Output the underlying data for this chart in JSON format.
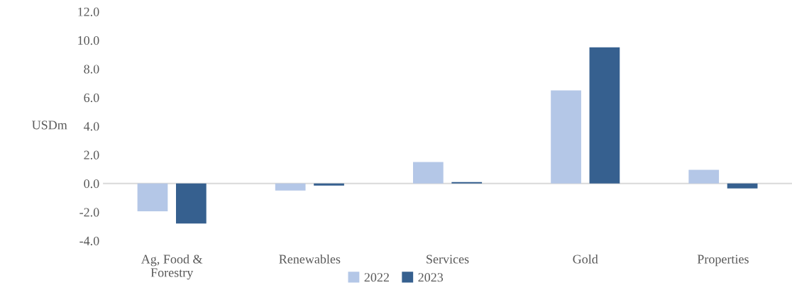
{
  "chart_data": {
    "type": "bar",
    "ylabel": "USDm",
    "categories": [
      "Ag, Food &\nForestry",
      "Renewables",
      "Services",
      "Gold",
      "Properties"
    ],
    "series": [
      {
        "name": "2022",
        "color": "#b4c7e7",
        "values": [
          -1.95,
          -0.5,
          1.5,
          6.5,
          0.95
        ]
      },
      {
        "name": "2023",
        "color": "#36608f",
        "values": [
          -2.8,
          -0.15,
          0.1,
          9.5,
          -0.35
        ]
      }
    ],
    "ylim": [
      -4,
      12
    ],
    "yticks": [
      {
        "value": -4,
        "label": "-4.0"
      },
      {
        "value": -2,
        "label": "-2.0"
      },
      {
        "value": 0,
        "label": "0.0"
      },
      {
        "value": 2,
        "label": "2.0"
      },
      {
        "value": 4,
        "label": "4.0"
      },
      {
        "value": 6,
        "label": "6.0"
      },
      {
        "value": 8,
        "label": "8.0"
      },
      {
        "value": 10,
        "label": "10.0"
      },
      {
        "value": 12,
        "label": "12.0"
      }
    ],
    "ref_lines": [
      {
        "axis": "y",
        "value": 0,
        "color": "#d9d9d9"
      }
    ],
    "legend": "bottom"
  }
}
